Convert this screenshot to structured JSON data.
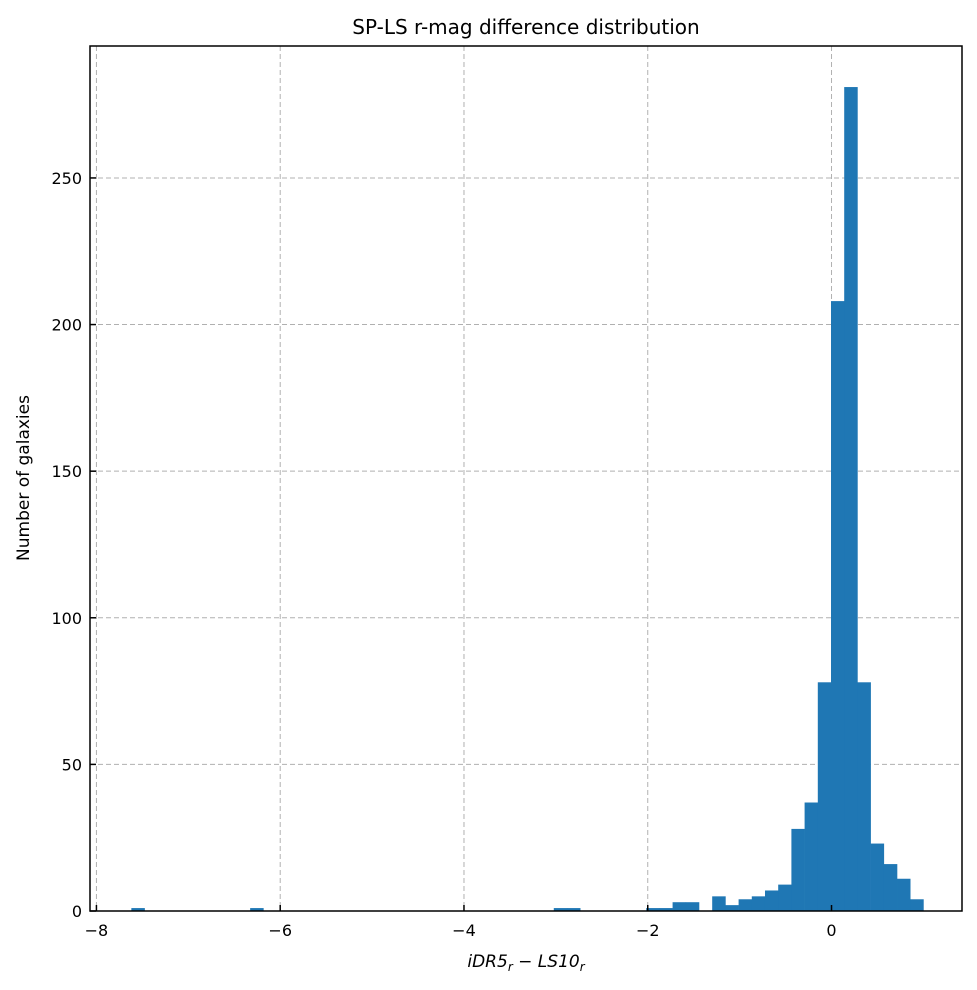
{
  "chart_data": {
    "type": "bar",
    "subtype": "histogram",
    "title": "SP-LS r-mag difference distribution",
    "xlabel": "iDR5r − LS10r",
    "xlabel_parts": [
      {
        "t": "iDR5",
        "sub": false
      },
      {
        "t": "r",
        "sub": true
      },
      {
        "t": " − LS10",
        "sub": false
      },
      {
        "t": "r",
        "sub": true
      }
    ],
    "ylabel": "Number of galaxies",
    "bin_range": [
      -7.62,
      1.0
    ],
    "bins": 60,
    "counts": [
      1,
      0,
      0,
      0,
      0,
      0,
      0,
      0,
      0,
      1,
      0,
      0,
      0,
      0,
      0,
      0,
      0,
      0,
      0,
      0,
      0,
      0,
      0,
      0,
      0,
      0,
      0,
      0,
      0,
      0,
      0,
      0,
      1,
      1,
      0,
      0,
      0,
      0,
      0,
      1,
      1,
      3,
      3,
      0,
      5,
      2,
      4,
      5,
      7,
      9,
      28,
      37,
      78,
      208,
      281,
      78,
      23,
      16,
      11,
      4
    ],
    "xlim": [
      -8.07,
      1.42
    ],
    "ylim": [
      0,
      295
    ],
    "xticks": [
      -8,
      -6,
      -4,
      -2,
      0
    ],
    "xtick_labels": [
      "−8",
      "−6",
      "−4",
      "−2",
      "0"
    ],
    "yticks": [
      0,
      50,
      100,
      150,
      200,
      250
    ],
    "ytick_labels": [
      "0",
      "50",
      "100",
      "150",
      "200",
      "250"
    ],
    "grid": true,
    "grid_style": "dashed",
    "bar_color": "#1f77b4",
    "grid_color": "#b0b0b0"
  }
}
